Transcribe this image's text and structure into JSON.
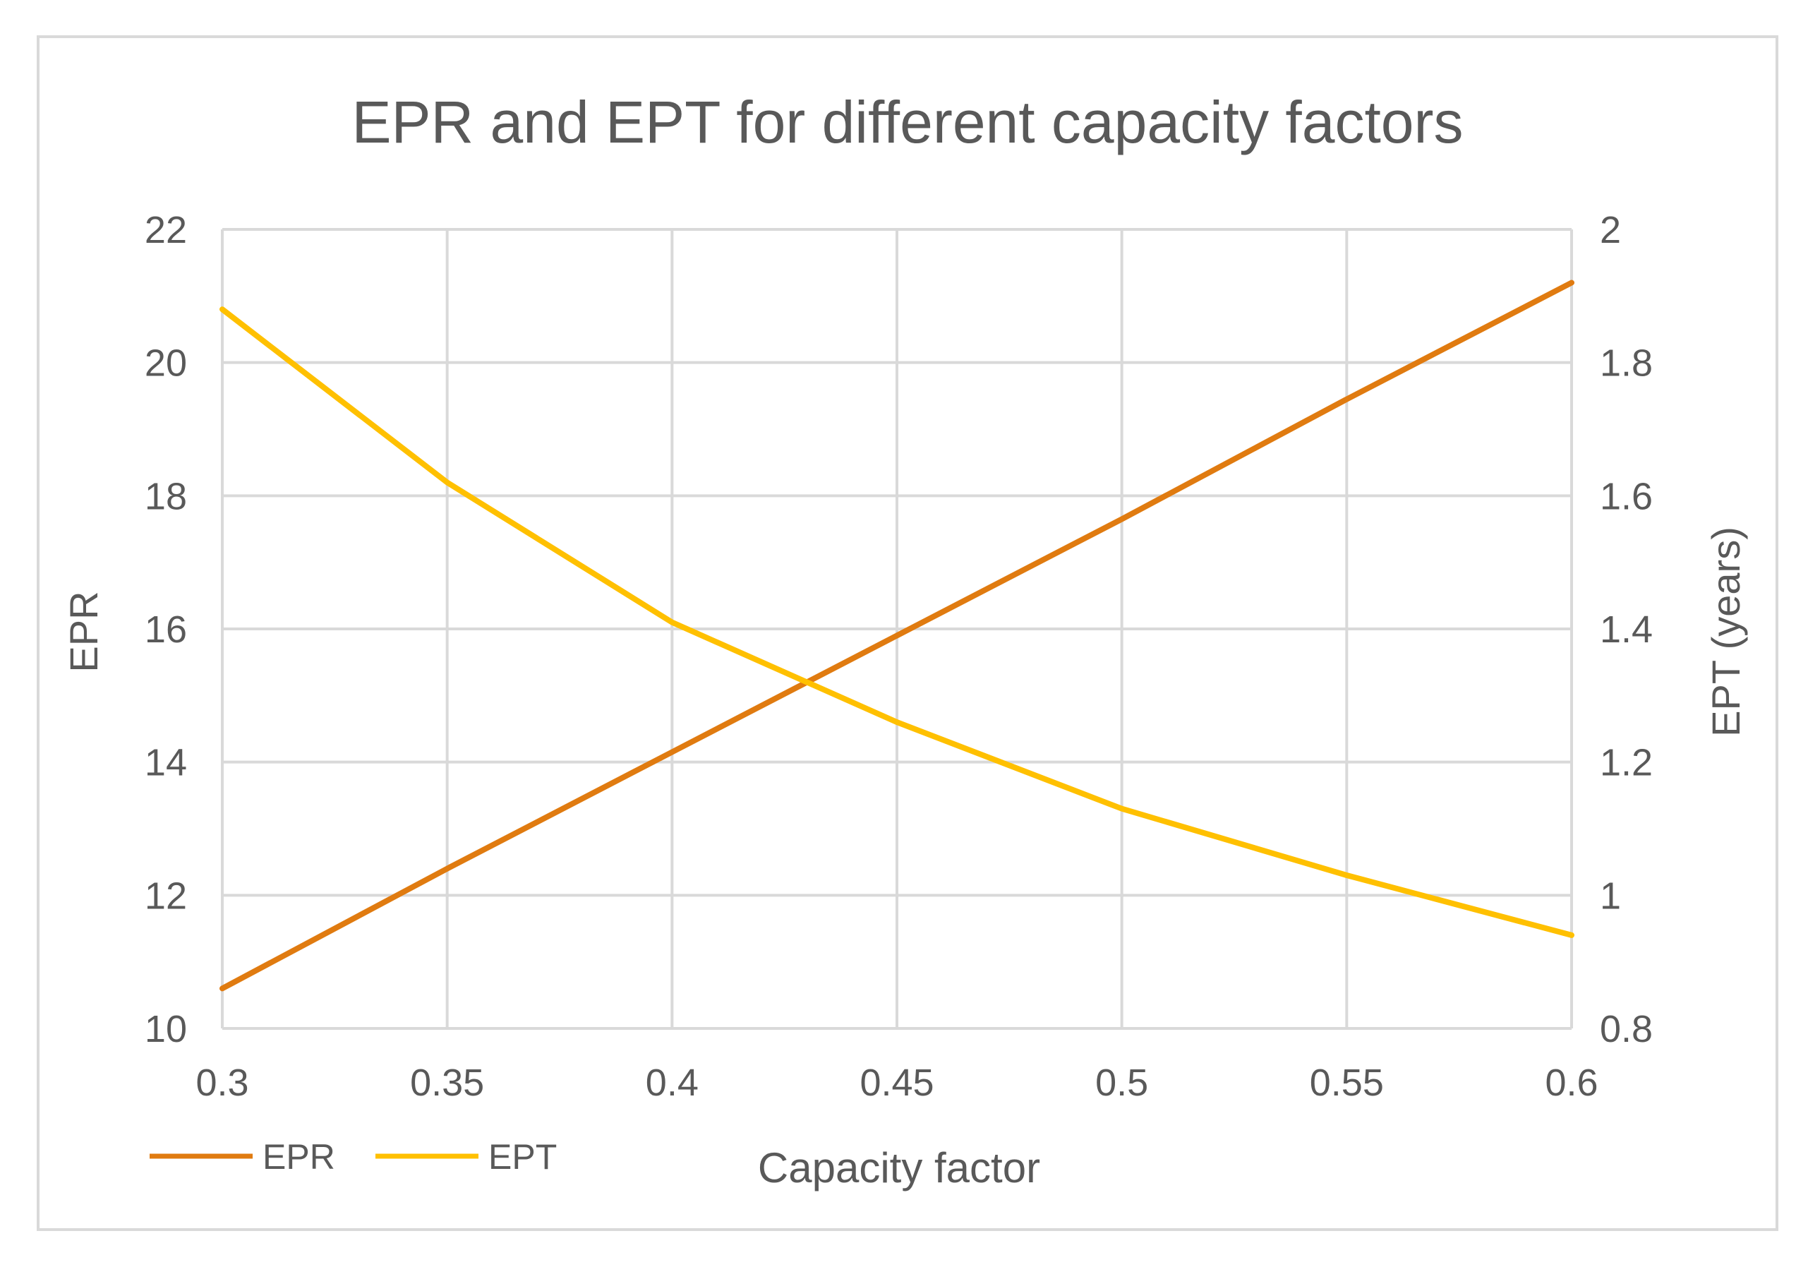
{
  "chart_data": {
    "type": "line",
    "title": "EPR and EPT for different capacity factors",
    "xlabel": "Capacity factor",
    "ylabel": "EPR",
    "y2label": "EPT (years)",
    "x": [
      0.3,
      0.35,
      0.4,
      0.45,
      0.5,
      0.55,
      0.6
    ],
    "xticks": [
      "0.3",
      "0.35",
      "0.4",
      "0.45",
      "0.5",
      "0.55",
      "0.6"
    ],
    "xlim": [
      0.3,
      0.6
    ],
    "ylim": [
      10,
      22
    ],
    "yticks": [
      "10",
      "12",
      "14",
      "16",
      "18",
      "20",
      "22"
    ],
    "y2lim": [
      0.8,
      2.0
    ],
    "y2ticks": [
      "0.8",
      "1",
      "1.2",
      "1.4",
      "1.6",
      "1.8",
      "2"
    ],
    "grid": true,
    "legend_position": "bottom-left",
    "series": [
      {
        "name": "EPR",
        "axis": "left",
        "color": "#E07B10",
        "values": [
          10.6,
          12.4,
          14.15,
          15.9,
          17.65,
          19.45,
          21.2
        ]
      },
      {
        "name": "EPT",
        "axis": "right",
        "color": "#FFC000",
        "values": [
          1.88,
          1.62,
          1.41,
          1.26,
          1.13,
          1.03,
          0.94
        ]
      }
    ]
  }
}
